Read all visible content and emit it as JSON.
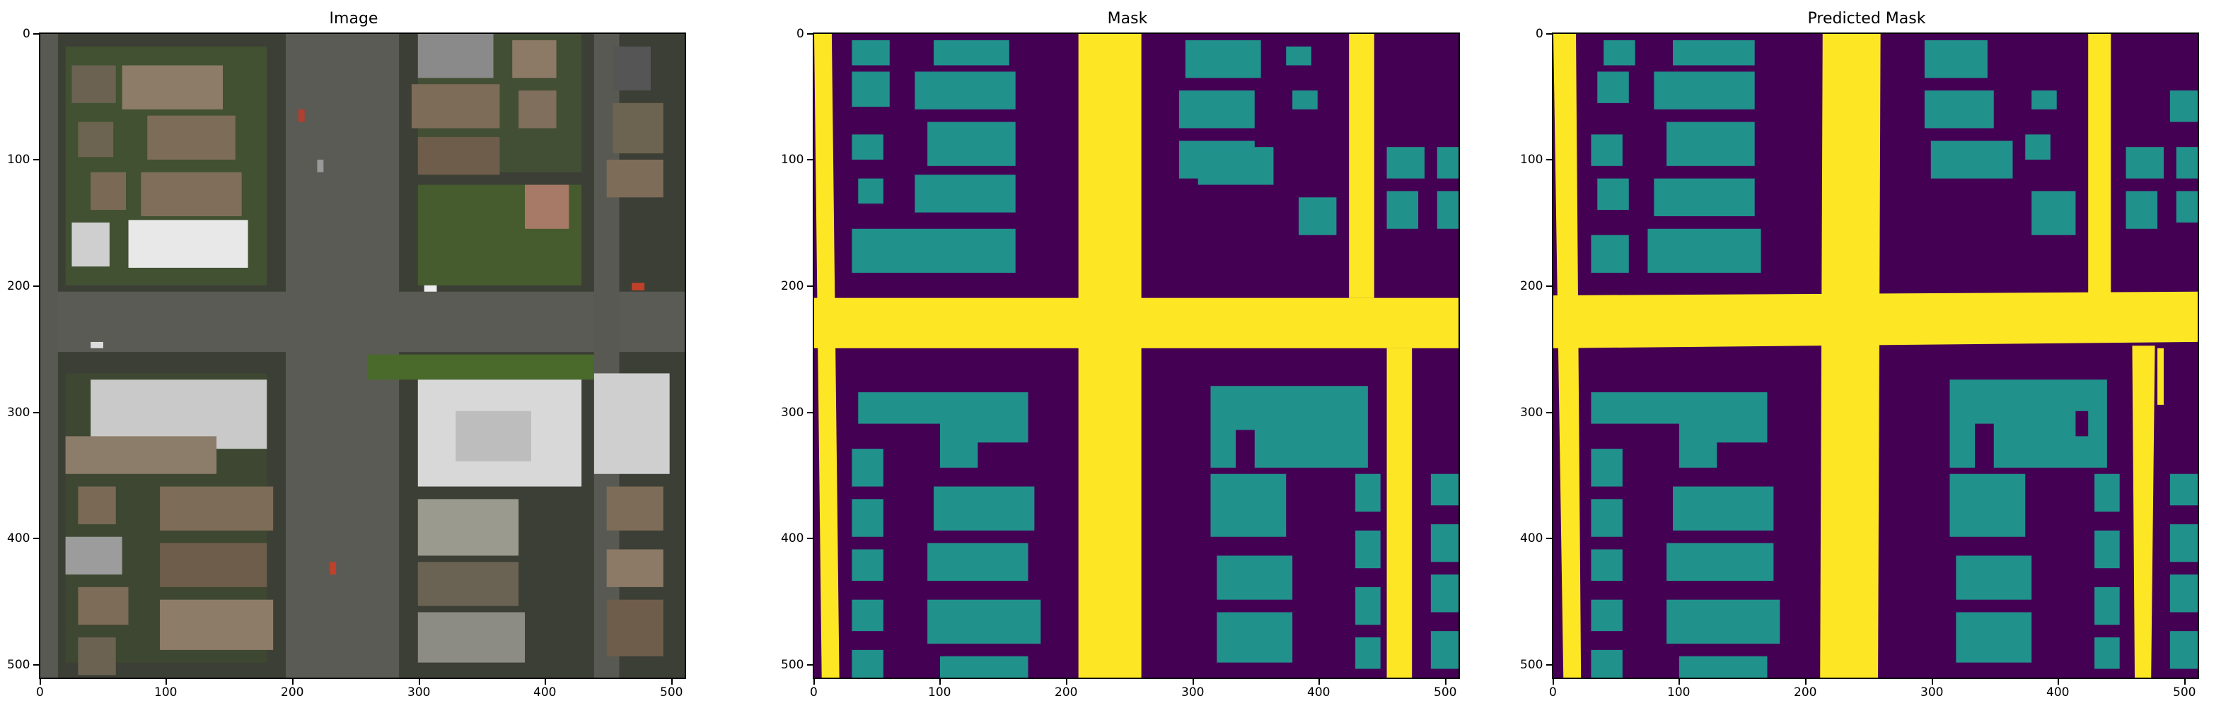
{
  "panels": [
    {
      "id": "image",
      "title": "Image",
      "kind": "aerial photo"
    },
    {
      "id": "mask",
      "title": "Mask",
      "kind": "segmentation mask"
    },
    {
      "id": "pred",
      "title": "Predicted Mask",
      "kind": "segmentation mask"
    }
  ],
  "axes": {
    "x_ticks": [
      "0",
      "100",
      "200",
      "300",
      "400",
      "500"
    ],
    "y_ticks": [
      "0",
      "100",
      "200",
      "300",
      "400",
      "500"
    ]
  },
  "colors": {
    "background_class": "#440154",
    "building_class": "#21918c",
    "road_class": "#fde725",
    "photo_road": "#5a5b55",
    "photo_ground": "#3c3f35",
    "photo_grass": "#4a6a2c",
    "photo_roof": "#7d6c58"
  }
}
